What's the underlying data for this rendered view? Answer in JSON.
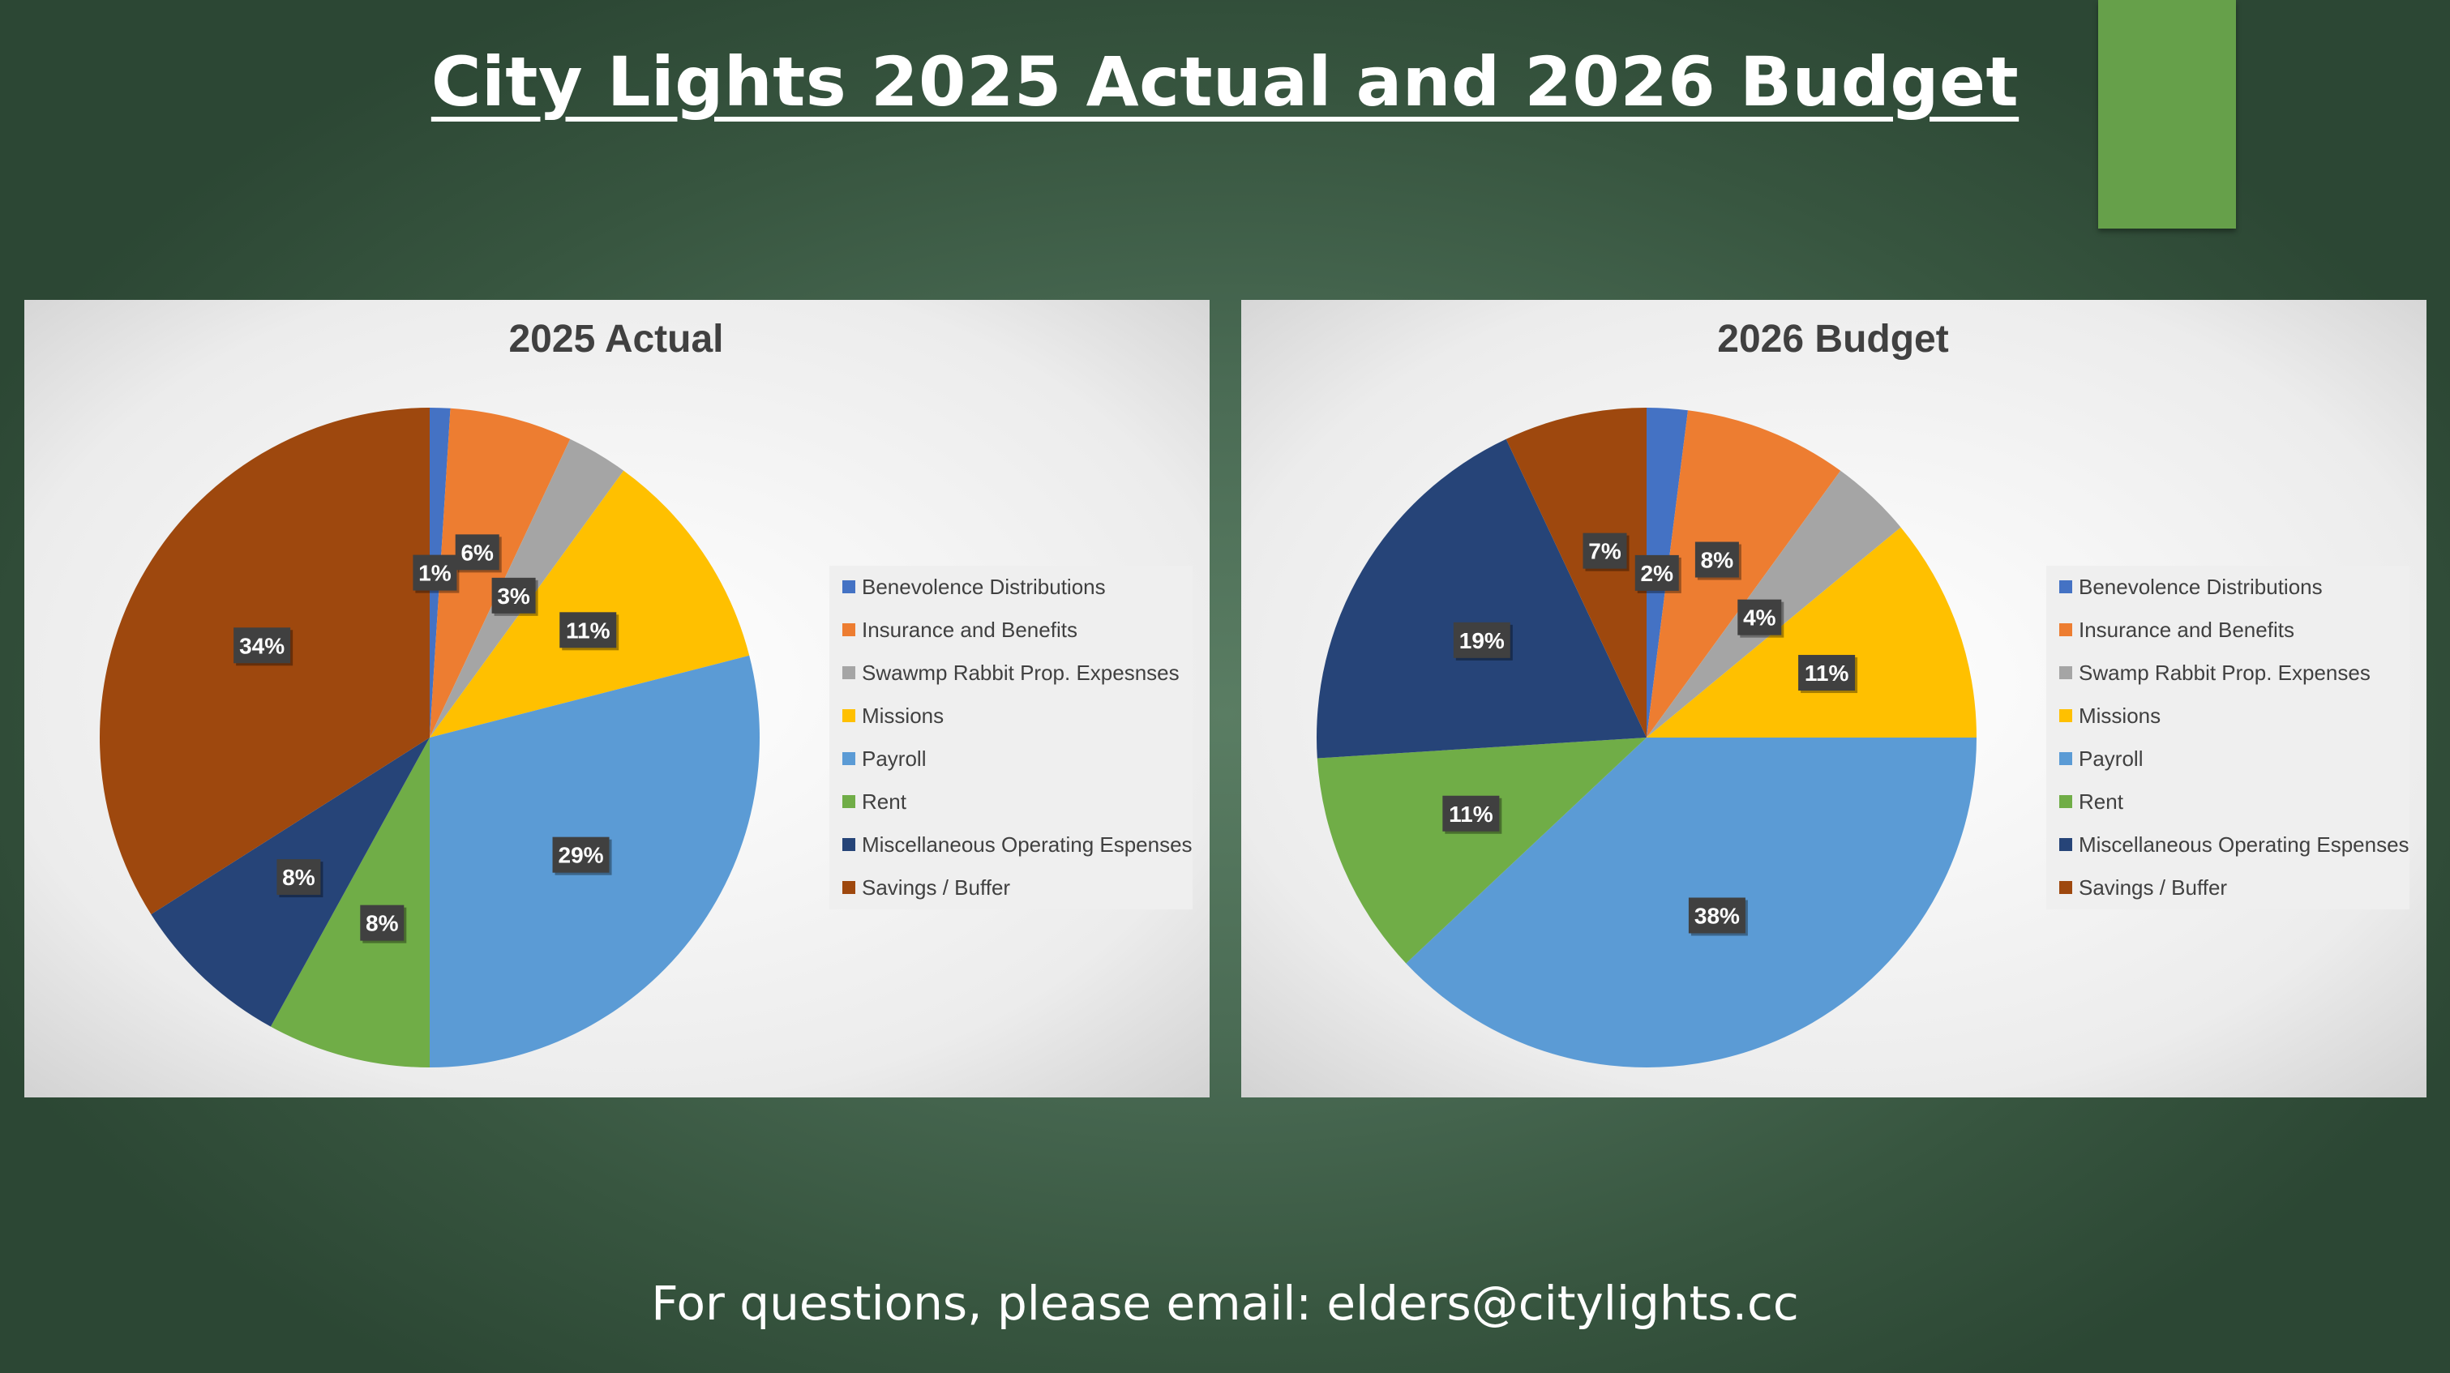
{
  "slide": {
    "title": "City Lights 2025 Actual and 2026 Budget",
    "footer": "For questions, please email: elders@citylights.cc",
    "accent_color": "#66a04a"
  },
  "chart_data": [
    {
      "type": "pie",
      "title": "2025 Actual",
      "legend_position": "right",
      "categories": [
        "Benevolence Distributions",
        "Insurance and Benefits",
        "Swawmp Rabbit Prop. Expesnses",
        "Missions",
        "Payroll",
        "Rent",
        "Miscellaneous Operating Espenses",
        "Savings / Buffer"
      ],
      "values": [
        1,
        6,
        3,
        11,
        29,
        8,
        8,
        34
      ],
      "data_labels": [
        "1%",
        "6%",
        "3%",
        "11%",
        "29%",
        "8%",
        "8%",
        "34%"
      ],
      "colors": [
        "#4472c4",
        "#ed7d31",
        "#a5a5a5",
        "#ffc000",
        "#5b9bd5",
        "#70ad47",
        "#264478",
        "#9e480e"
      ]
    },
    {
      "type": "pie",
      "title": "2026 Budget",
      "legend_position": "right",
      "categories": [
        "Benevolence Distributions",
        "Insurance and Benefits",
        "Swamp Rabbit Prop. Expenses",
        "Missions",
        "Payroll",
        "Rent",
        "Miscellaneous Operating Espenses",
        "Savings / Buffer"
      ],
      "values": [
        2,
        8,
        4,
        11,
        38,
        11,
        19,
        7
      ],
      "data_labels": [
        "2%",
        "8%",
        "4%",
        "11%",
        "38%",
        "11%",
        "19%",
        "7%"
      ],
      "colors": [
        "#4472c4",
        "#ed7d31",
        "#a5a5a5",
        "#ffc000",
        "#5b9bd5",
        "#70ad47",
        "#264478",
        "#9e480e"
      ]
    }
  ]
}
